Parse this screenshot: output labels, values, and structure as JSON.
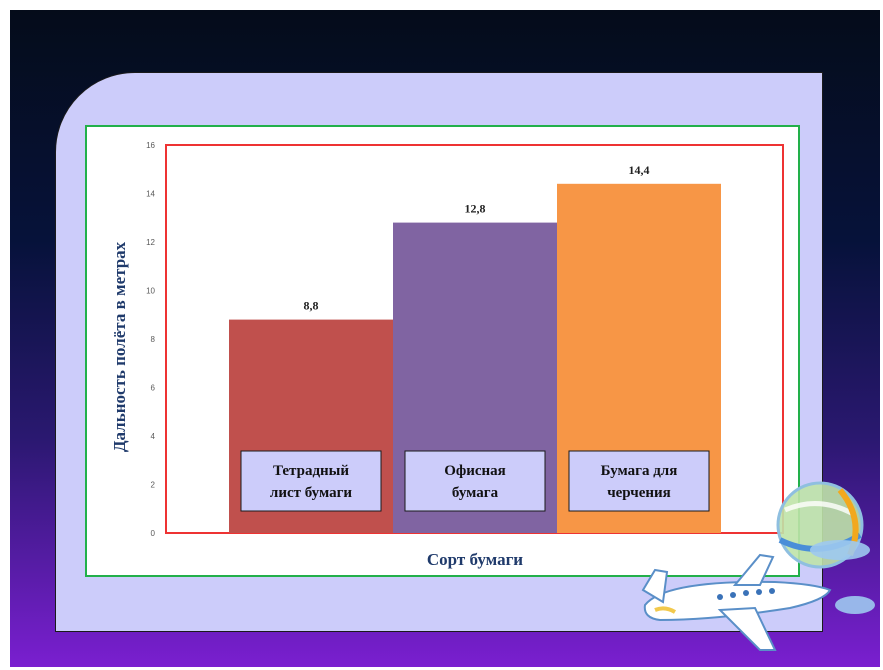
{
  "chart_data": {
    "type": "bar",
    "categories": [
      "Тетрадный лист бумаги",
      "Офисная бумага",
      "Бумага для черчения"
    ],
    "category_lines": [
      [
        "Тетрадный",
        "лист бумаги"
      ],
      [
        "Офисная",
        "бумага"
      ],
      [
        "Бумага для",
        "черчения"
      ]
    ],
    "values": [
      8.8,
      12.8,
      14.4
    ],
    "value_labels": [
      "8,8",
      "12,8",
      "14,4"
    ],
    "colors": [
      "#c0504d",
      "#8064a2",
      "#f79646"
    ],
    "ylabel": "Дальность полёта в метрах",
    "xlabel": "Сорт бумаги",
    "ylim": [
      0,
      16
    ],
    "yticks": [
      "0",
      "2",
      "4",
      "6",
      "8",
      "10",
      "12",
      "14",
      "16"
    ],
    "grid": false,
    "legend": "none"
  },
  "decor": {
    "plane_icon": "airplane-icon",
    "globe_icon": "globe-icon"
  }
}
